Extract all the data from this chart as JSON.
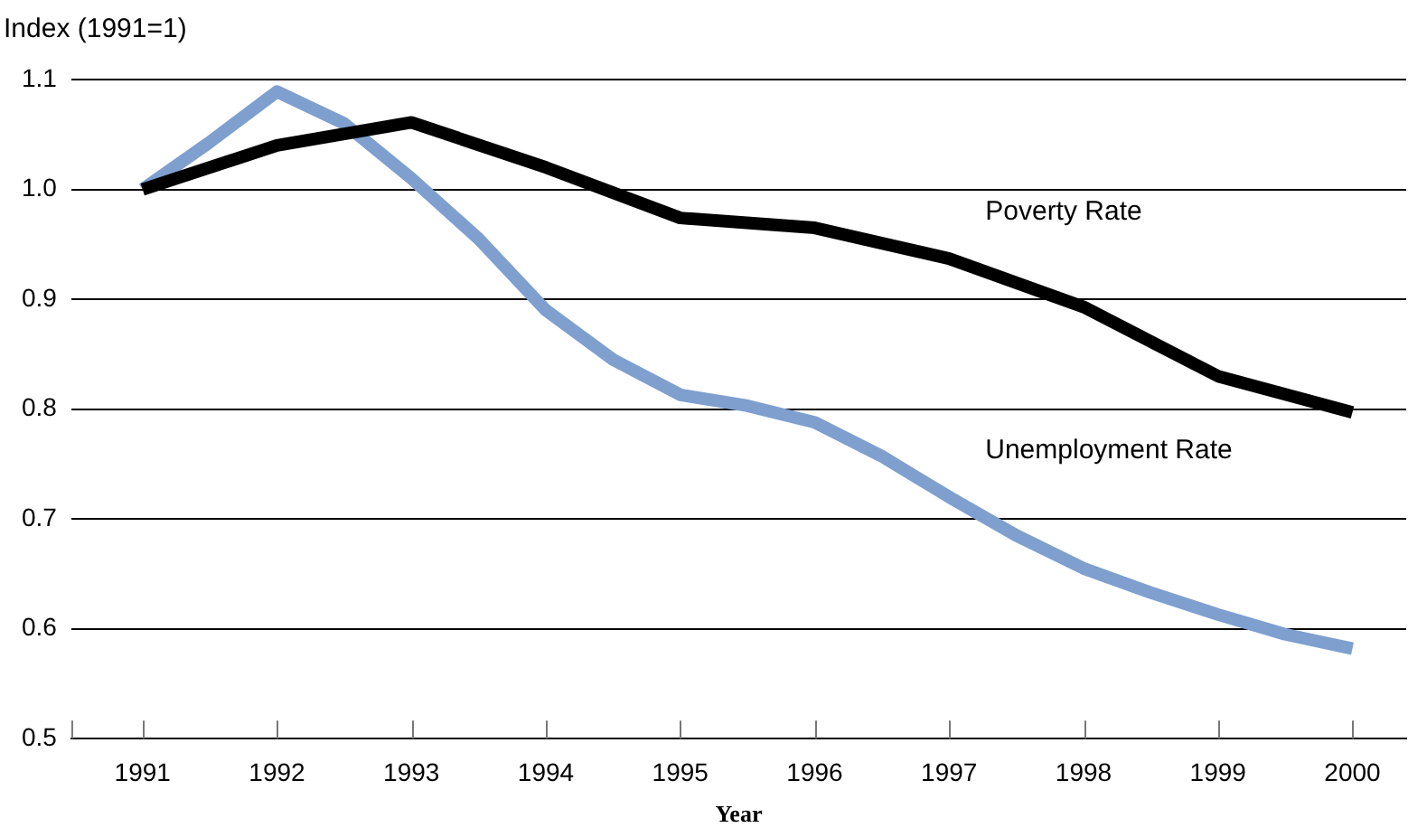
{
  "chart_data": {
    "type": "line",
    "xlabel": "Year",
    "ylabel": "Index (1991=1)",
    "xlim": [
      1990.47,
      2000.4
    ],
    "xticks": [
      1991,
      1992,
      1993,
      1994,
      1995,
      1996,
      1997,
      1998,
      1999,
      2000
    ],
    "ylim": [
      0.5,
      1.1
    ],
    "yticks": [
      0.5,
      0.6,
      0.7,
      0.8,
      0.9,
      {
        "value": 1,
        "label": "1.0"
      },
      1.1
    ],
    "grid": "y",
    "legend": false,
    "marker": "none",
    "line_style": "solid",
    "series": [
      {
        "name": "Poverty Rate",
        "color": "#000000",
        "x": [
          1991,
          1992,
          1993,
          1994,
          1995,
          1996,
          1997,
          1998,
          1999,
          2000
        ],
        "values": [
          1.0,
          1.04,
          1.061,
          1.02,
          0.974,
          0.965,
          0.937,
          0.893,
          0.83,
          0.797
        ]
      },
      {
        "name": "Unemployment Rate",
        "color": "#7f9fcf",
        "x": [
          1991,
          1991.5,
          1992,
          1992.5,
          1993,
          1993.5,
          1994,
          1994.5,
          1995,
          1995.5,
          1996,
          1996.5,
          1997,
          1997.5,
          1998,
          1998.5,
          1999,
          1999.5,
          2000
        ],
        "values": [
          1.0,
          1.043,
          1.089,
          1.06,
          1.01,
          0.955,
          0.89,
          0.845,
          0.813,
          0.803,
          0.788,
          0.757,
          0.72,
          0.685,
          0.655,
          0.633,
          0.613,
          0.595,
          0.582
        ]
      }
    ]
  }
}
